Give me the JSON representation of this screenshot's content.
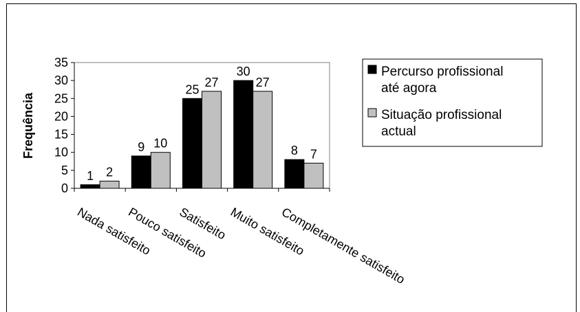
{
  "chart_data": {
    "type": "bar",
    "title": "",
    "xlabel": "",
    "ylabel": "Frequência",
    "ylim": [
      0,
      35
    ],
    "yticks": [
      0,
      5,
      10,
      15,
      20,
      25,
      30,
      35
    ],
    "categories": [
      "Nada satisfeito",
      "Pouco satisfeito",
      "Satisfeito",
      "Muito satisfeito",
      "Completamente satisfeito"
    ],
    "series": [
      {
        "name": "Percurso profissional até agora",
        "values": [
          1,
          9,
          25,
          30,
          8
        ],
        "color": "#000000"
      },
      {
        "name": "Situação profissional actual",
        "values": [
          2,
          10,
          27,
          27,
          7
        ],
        "color": "#c0c0c0"
      }
    ],
    "legend": {
      "position": "right",
      "entries": [
        {
          "lines": [
            "Percurso profissional",
            "até agora"
          ]
        },
        {
          "lines": [
            "Situação profissional",
            "actual"
          ]
        }
      ]
    },
    "grid": false,
    "data_labels": true
  }
}
